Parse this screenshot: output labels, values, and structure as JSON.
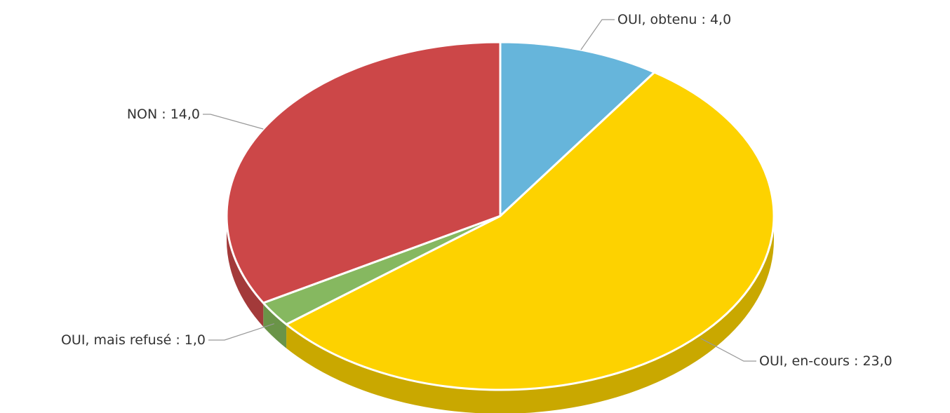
{
  "chart_data": {
    "type": "pie",
    "categories": [
      "OUI, obtenu",
      "OUI, en-cours",
      "OUI, mais refusé",
      "NON"
    ],
    "values": [
      4,
      23,
      1,
      14
    ],
    "value_labels": [
      "4,0",
      "23,0",
      "1,0",
      "14,0"
    ],
    "label_separator": " : ",
    "colors": [
      "#66b5db",
      "#fdd200",
      "#86b860",
      "#cc4748"
    ],
    "side_colors": [
      "#4f93b4",
      "#c9a800",
      "#6a9448",
      "#a33a3a"
    ]
  }
}
